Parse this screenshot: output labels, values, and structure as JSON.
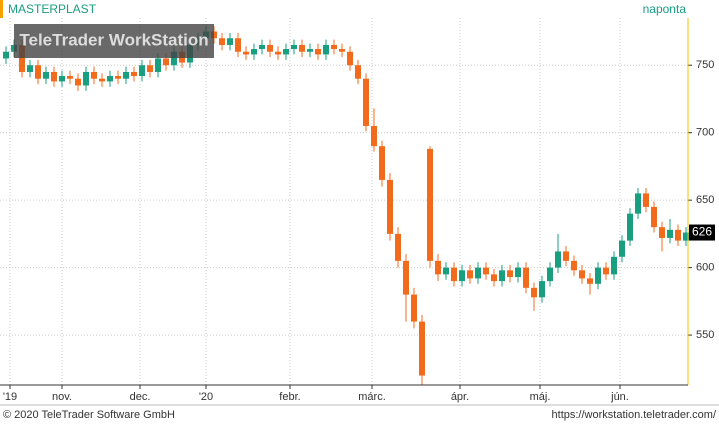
{
  "chart_data": {
    "type": "candlestick",
    "title": "MASTERPLAST",
    "interval": "naponta",
    "watermark": "TeleTrader WorkStation",
    "footer_left": "© 2020 TeleTrader Software GmbH",
    "footer_right": "https://workstation.teletrader.com/",
    "up_color": "#1a9e80",
    "down_color": "#f26b1d",
    "open": [
      755,
      760,
      765,
      745,
      750,
      740,
      745,
      738,
      742,
      740,
      735,
      745,
      740,
      738,
      742,
      740,
      745,
      742,
      750,
      745,
      755,
      750,
      760,
      752,
      765,
      770,
      775,
      770,
      765,
      770,
      760,
      758,
      762,
      765,
      760,
      758,
      762,
      765,
      760,
      762,
      758,
      765,
      762,
      760,
      750,
      740,
      705,
      690,
      665,
      625,
      605,
      580,
      560,
      688,
      605,
      595,
      600,
      590,
      598,
      592,
      600,
      595,
      590,
      598,
      593,
      600,
      585,
      578,
      590,
      600,
      612,
      605,
      598,
      592,
      588,
      600,
      595,
      608,
      620,
      640,
      655,
      645,
      630,
      622,
      628,
      620
    ],
    "high": [
      764,
      769,
      769,
      754,
      754,
      749,
      749,
      746,
      746,
      744,
      749,
      749,
      744,
      746,
      746,
      749,
      749,
      754,
      754,
      759,
      759,
      764,
      764,
      769,
      774,
      779,
      779,
      774,
      774,
      774,
      764,
      766,
      769,
      769,
      764,
      766,
      769,
      769,
      766,
      766,
      769,
      769,
      766,
      764,
      754,
      744,
      718,
      694,
      670,
      630,
      610,
      585,
      565,
      690,
      610,
      604,
      604,
      602,
      602,
      604,
      604,
      599,
      602,
      602,
      604,
      604,
      589,
      594,
      604,
      625,
      616,
      609,
      602,
      596,
      604,
      604,
      612,
      624,
      644,
      659,
      659,
      649,
      634,
      636,
      632,
      630
    ],
    "low": [
      751,
      756,
      741,
      741,
      736,
      736,
      734,
      734,
      736,
      731,
      731,
      736,
      734,
      734,
      736,
      736,
      738,
      738,
      741,
      741,
      746,
      746,
      748,
      748,
      761,
      766,
      766,
      761,
      761,
      756,
      754,
      754,
      758,
      756,
      754,
      754,
      758,
      756,
      756,
      754,
      754,
      758,
      756,
      746,
      736,
      701,
      686,
      660,
      620,
      600,
      560,
      555,
      513,
      600,
      590,
      591,
      586,
      586,
      588,
      588,
      591,
      586,
      586,
      589,
      589,
      581,
      568,
      574,
      586,
      596,
      601,
      594,
      588,
      580,
      584,
      591,
      591,
      604,
      616,
      636,
      641,
      626,
      612,
      618,
      616,
      616
    ],
    "close": [
      760,
      765,
      745,
      750,
      740,
      745,
      738,
      742,
      740,
      735,
      745,
      740,
      738,
      742,
      740,
      745,
      742,
      750,
      745,
      755,
      750,
      760,
      752,
      765,
      770,
      775,
      770,
      765,
      770,
      760,
      758,
      762,
      765,
      760,
      758,
      762,
      765,
      760,
      762,
      758,
      765,
      762,
      760,
      750,
      740,
      705,
      690,
      665,
      625,
      605,
      580,
      560,
      520,
      605,
      595,
      600,
      590,
      598,
      592,
      600,
      595,
      590,
      598,
      593,
      600,
      585,
      578,
      590,
      600,
      612,
      605,
      598,
      592,
      588,
      600,
      595,
      608,
      620,
      640,
      655,
      645,
      630,
      622,
      628,
      620,
      626
    ],
    "ylim": [
      513,
      785
    ],
    "yticks": [
      550,
      600,
      650,
      700,
      750
    ],
    "xticks": [
      {
        "value": 0.5,
        "label": "'19"
      },
      {
        "value": 7,
        "label": "nov."
      },
      {
        "value": 16.75,
        "label": "dec."
      },
      {
        "value": 25,
        "label": "'20"
      },
      {
        "value": 35.5,
        "label": "febr."
      },
      {
        "value": 45.75,
        "label": "márc."
      },
      {
        "value": 56.75,
        "label": "ápr."
      },
      {
        "value": 66.75,
        "label": "máj."
      },
      {
        "value": 76.75,
        "label": "jún."
      }
    ],
    "grid": true
  }
}
